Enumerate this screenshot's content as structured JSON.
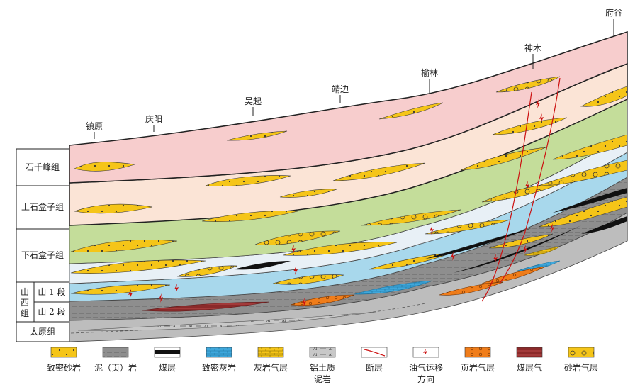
{
  "locations": [
    "镇原",
    "庆阳",
    "吴起",
    "靖边",
    "榆林",
    "神木",
    "府谷"
  ],
  "strat_column": {
    "shiqianfeng": "石千峰组",
    "upper_shihezi": "上石盒子组",
    "lower_shihezi": "下石盒子组",
    "shanxi": [
      "山",
      "西",
      "组"
    ],
    "shan1": "山 1 段",
    "shan2": "山 2 段",
    "taiyuan": "太原组"
  },
  "legend": [
    {
      "id": "tight-sandstone",
      "label": [
        "致密砂岩"
      ],
      "swatch": "tight-sand",
      "color": "#f5c518"
    },
    {
      "id": "mudstone",
      "label": [
        "泥（页）岩"
      ],
      "swatch": "mud",
      "color": "#9a9a9a"
    },
    {
      "id": "coal-seam",
      "label": [
        "煤层"
      ],
      "swatch": "coal",
      "color": "#111111"
    },
    {
      "id": "tight-limestone",
      "label": [
        "致密灰岩"
      ],
      "swatch": "lime",
      "color": "#3fa8dc"
    },
    {
      "id": "limestone-gas",
      "label": [
        "灰岩气层"
      ],
      "swatch": "limegas",
      "color": "#f5c518"
    },
    {
      "id": "bauxite-mudstone",
      "label": [
        "铝土质",
        "泥岩"
      ],
      "swatch": "bauxite",
      "color": "#c8c8c8"
    },
    {
      "id": "fault",
      "label": [
        "断层"
      ],
      "swatch": "fault",
      "color": "#cc1111"
    },
    {
      "id": "migration-direction",
      "label": [
        "油气运移",
        "方向"
      ],
      "swatch": "arrow",
      "color": "#cc1111"
    },
    {
      "id": "shale-gas",
      "label": [
        "页岩气层"
      ],
      "swatch": "shalegas",
      "color": "#f07d1a"
    },
    {
      "id": "coalbed-gas",
      "label": [
        "煤层气"
      ],
      "swatch": "coalgas",
      "color": "#8b2a2a"
    },
    {
      "id": "sandstone-gas",
      "label": [
        "砂岩气层"
      ],
      "swatch": "sandgas",
      "color": "#f5c518"
    }
  ],
  "colors": {
    "shiqianfeng": "#f7cdcd",
    "upper_shihezi": "#fbe4d6",
    "lower_shihezi_green": "#c4dd9a",
    "lower_shihezi_pale": "#e8f0f6",
    "shanxi_blue": "#a8d8ec",
    "sandstone": "#f5c518",
    "mudstone": "#8e8e8e",
    "taiyuan": "#bdbdbd"
  }
}
